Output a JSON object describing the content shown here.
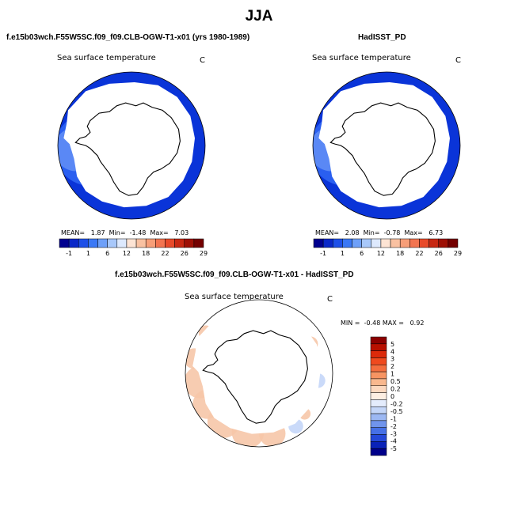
{
  "title": "JJA",
  "colors": {
    "background": "#ffffff",
    "land": "#ffffff",
    "outline": "#000000",
    "ocean_dark": "#0a34d8",
    "ocean_mid": "#2a5ff0",
    "ocean_light": "#5a88f5",
    "diff_pos": "#f6c6a8",
    "diff_neg": "#c4d6f8"
  },
  "panels": [
    {
      "id": "model",
      "title": "f.e15b03wch.F55W5SC.f09_f09.CLB-OGW-T1-x01 (yrs 1980-1989)",
      "variable": "Sea surface temperature",
      "units": "C",
      "stats": {
        "mean_label": "MEAN=",
        "mean": "1.87",
        "min_label": "Min=",
        "min": "-1.48",
        "max_label": "Max=",
        "max": "7.03"
      },
      "colorbar": {
        "labels": [
          "-1",
          "1",
          "6",
          "12",
          "18",
          "22",
          "26",
          "29"
        ],
        "colors": [
          "#00008f",
          "#0a28c8",
          "#1e50e8",
          "#3a78f5",
          "#6ea0f8",
          "#a8c8fa",
          "#dde9fd",
          "#fde4d4",
          "#f9c1a1",
          "#f79e78",
          "#f27450",
          "#e84a2a",
          "#c82812",
          "#9e1005",
          "#740000"
        ]
      }
    },
    {
      "id": "obs",
      "title": "HadISST_PD",
      "variable": "Sea surface temperature",
      "units": "C",
      "stats": {
        "mean_label": "MEAN=",
        "mean": "2.08",
        "min_label": "Min=",
        "min": "-0.78",
        "max_label": "Max=",
        "max": "6.73"
      },
      "colorbar": {
        "labels": [
          "-1",
          "1",
          "6",
          "12",
          "18",
          "22",
          "26",
          "29"
        ],
        "colors": [
          "#00008f",
          "#0a28c8",
          "#1e50e8",
          "#3a78f5",
          "#6ea0f8",
          "#a8c8fa",
          "#dde9fd",
          "#fde4d4",
          "#f9c1a1",
          "#f79e78",
          "#f27450",
          "#e84a2a",
          "#c82812",
          "#9e1005",
          "#740000"
        ]
      }
    },
    {
      "id": "diff",
      "title": "f.e15b03wch.F55W5SC.f09_f09.CLB-OGW-T1-x01 - HadISST_PD",
      "variable": "Sea surface temperature",
      "units": "C",
      "stats": {
        "min_label": "MIN =",
        "min": "-0.48",
        "max_label": "MAX =",
        "max": "0.92"
      },
      "colorbar": {
        "labels": [
          "5",
          "4",
          "3",
          "2",
          "1",
          "0.5",
          "0.2",
          "0",
          "-0.2",
          "-0.5",
          "-1",
          "-2",
          "-3",
          "-4",
          "-5"
        ],
        "colors": [
          "#8b0000",
          "#b81000",
          "#dc2a0a",
          "#ef4a1e",
          "#f46e3e",
          "#f79462",
          "#f9b88e",
          "#fcd8bf",
          "#fdeee2",
          "#e4ecfc",
          "#c4d6f8",
          "#9cb8f3",
          "#7094ec",
          "#4670e6",
          "#2448d8",
          "#0a22b8",
          "#00008a"
        ]
      }
    }
  ]
}
